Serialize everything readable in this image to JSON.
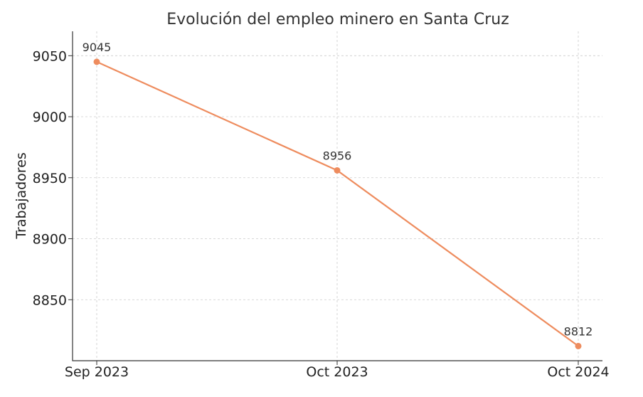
{
  "chart_data": {
    "type": "line",
    "title": "Evolución del empleo minero en Santa Cruz",
    "xlabel": "",
    "ylabel": "Trabajadores",
    "categories": [
      "Sep 2023",
      "Oct 2023",
      "Oct 2024"
    ],
    "series": [
      {
        "values": [
          9045,
          8956,
          8812
        ],
        "color": "#ee8c5e"
      }
    ],
    "data_labels": [
      "9045",
      "8956",
      "8812"
    ],
    "yticks": [
      8850,
      8900,
      8950,
      9000,
      9050
    ],
    "ytick_labels": [
      "8850",
      "8900",
      "8950",
      "9000",
      "9050"
    ],
    "ylim": [
      8800,
      9070
    ],
    "grid": true,
    "legend": "none"
  }
}
